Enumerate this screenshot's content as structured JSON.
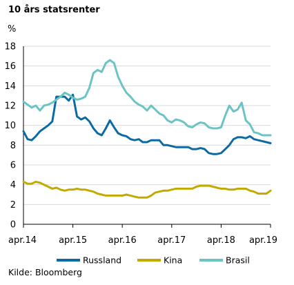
{
  "chart_data": {
    "type": "line",
    "title": "10 års statsrenter",
    "ylabel": "%",
    "ylim": [
      0,
      18
    ],
    "yticks": [
      0,
      2,
      4,
      6,
      8,
      10,
      12,
      14,
      16,
      18
    ],
    "xlim": [
      "2014-04",
      "2019-04"
    ],
    "xticks": [
      {
        "date": "2014-04",
        "label": "apr.14"
      },
      {
        "date": "2015-04",
        "label": "apr.15"
      },
      {
        "date": "2016-04",
        "label": "apr.16"
      },
      {
        "date": "2017-04",
        "label": "apr.17"
      },
      {
        "date": "2018-04",
        "label": "apr.18"
      },
      {
        "date": "2019-04",
        "label": "apr.19"
      }
    ],
    "grid": true,
    "legend_position": "bottom",
    "series": [
      {
        "name": "Russland",
        "color": "#0b6aa3",
        "points": [
          [
            "2014-04",
            9.4
          ],
          [
            "2014-05",
            8.6
          ],
          [
            "2014-06",
            8.5
          ],
          [
            "2014-07",
            8.9
          ],
          [
            "2014-08",
            9.4
          ],
          [
            "2014-09",
            9.7
          ],
          [
            "2014-10",
            10.0
          ],
          [
            "2014-11",
            10.4
          ],
          [
            "2014-12",
            12.9
          ],
          [
            "2015-01",
            12.9
          ],
          [
            "2015-02",
            12.9
          ],
          [
            "2015-03",
            12.5
          ],
          [
            "2015-04",
            13.1
          ],
          [
            "2015-05",
            10.9
          ],
          [
            "2015-06",
            10.6
          ],
          [
            "2015-07",
            10.8
          ],
          [
            "2015-08",
            10.4
          ],
          [
            "2015-09",
            9.7
          ],
          [
            "2015-10",
            9.2
          ],
          [
            "2015-11",
            9.0
          ],
          [
            "2015-12",
            9.7
          ],
          [
            "2016-01",
            10.5
          ],
          [
            "2016-02",
            9.8
          ],
          [
            "2016-03",
            9.2
          ],
          [
            "2016-04",
            9.0
          ],
          [
            "2016-05",
            8.9
          ],
          [
            "2016-06",
            8.6
          ],
          [
            "2016-07",
            8.5
          ],
          [
            "2016-08",
            8.6
          ],
          [
            "2016-09",
            8.3
          ],
          [
            "2016-10",
            8.3
          ],
          [
            "2016-11",
            8.5
          ],
          [
            "2016-12",
            8.5
          ],
          [
            "2017-01",
            8.5
          ],
          [
            "2017-02",
            8.0
          ],
          [
            "2017-03",
            8.0
          ],
          [
            "2017-04",
            7.9
          ],
          [
            "2017-05",
            7.8
          ],
          [
            "2017-06",
            7.8
          ],
          [
            "2017-07",
            7.8
          ],
          [
            "2017-08",
            7.8
          ],
          [
            "2017-09",
            7.6
          ],
          [
            "2017-10",
            7.6
          ],
          [
            "2017-11",
            7.7
          ],
          [
            "2017-12",
            7.6
          ],
          [
            "2018-01",
            7.2
          ],
          [
            "2018-02",
            7.1
          ],
          [
            "2018-03",
            7.1
          ],
          [
            "2018-04",
            7.2
          ],
          [
            "2018-05",
            7.6
          ],
          [
            "2018-06",
            8.0
          ],
          [
            "2018-07",
            8.6
          ],
          [
            "2018-08",
            8.8
          ],
          [
            "2018-09",
            8.8
          ],
          [
            "2018-10",
            8.7
          ],
          [
            "2018-11",
            8.9
          ],
          [
            "2018-12",
            8.6
          ],
          [
            "2019-01",
            8.5
          ],
          [
            "2019-02",
            8.4
          ],
          [
            "2019-03",
            8.3
          ],
          [
            "2019-04",
            8.2
          ]
        ]
      },
      {
        "name": "Kina",
        "color": "#c2aa00",
        "points": [
          [
            "2014-04",
            4.3
          ],
          [
            "2014-05",
            4.1
          ],
          [
            "2014-06",
            4.1
          ],
          [
            "2014-07",
            4.3
          ],
          [
            "2014-08",
            4.2
          ],
          [
            "2014-09",
            4.0
          ],
          [
            "2014-10",
            3.8
          ],
          [
            "2014-11",
            3.6
          ],
          [
            "2014-12",
            3.7
          ],
          [
            "2015-01",
            3.5
          ],
          [
            "2015-02",
            3.4
          ],
          [
            "2015-03",
            3.5
          ],
          [
            "2015-04",
            3.5
          ],
          [
            "2015-05",
            3.6
          ],
          [
            "2015-06",
            3.5
          ],
          [
            "2015-07",
            3.5
          ],
          [
            "2015-08",
            3.4
          ],
          [
            "2015-09",
            3.3
          ],
          [
            "2015-10",
            3.1
          ],
          [
            "2015-11",
            3.0
          ],
          [
            "2015-12",
            2.9
          ],
          [
            "2016-01",
            2.9
          ],
          [
            "2016-02",
            2.9
          ],
          [
            "2016-03",
            2.9
          ],
          [
            "2016-04",
            2.9
          ],
          [
            "2016-05",
            3.0
          ],
          [
            "2016-06",
            2.9
          ],
          [
            "2016-07",
            2.8
          ],
          [
            "2016-08",
            2.7
          ],
          [
            "2016-09",
            2.7
          ],
          [
            "2016-10",
            2.7
          ],
          [
            "2016-11",
            2.9
          ],
          [
            "2016-12",
            3.2
          ],
          [
            "2017-01",
            3.3
          ],
          [
            "2017-02",
            3.4
          ],
          [
            "2017-03",
            3.4
          ],
          [
            "2017-04",
            3.5
          ],
          [
            "2017-05",
            3.6
          ],
          [
            "2017-06",
            3.6
          ],
          [
            "2017-07",
            3.6
          ],
          [
            "2017-08",
            3.6
          ],
          [
            "2017-09",
            3.6
          ],
          [
            "2017-10",
            3.8
          ],
          [
            "2017-11",
            3.9
          ],
          [
            "2017-12",
            3.9
          ],
          [
            "2018-01",
            3.9
          ],
          [
            "2018-02",
            3.8
          ],
          [
            "2018-03",
            3.7
          ],
          [
            "2018-04",
            3.6
          ],
          [
            "2018-05",
            3.6
          ],
          [
            "2018-06",
            3.5
          ],
          [
            "2018-07",
            3.5
          ],
          [
            "2018-08",
            3.6
          ],
          [
            "2018-09",
            3.6
          ],
          [
            "2018-10",
            3.6
          ],
          [
            "2018-11",
            3.4
          ],
          [
            "2018-12",
            3.3
          ],
          [
            "2019-01",
            3.1
          ],
          [
            "2019-02",
            3.1
          ],
          [
            "2019-03",
            3.1
          ],
          [
            "2019-04",
            3.4
          ]
        ]
      },
      {
        "name": "Brasil",
        "color": "#6cc3c4",
        "points": [
          [
            "2014-04",
            12.4
          ],
          [
            "2014-05",
            12.1
          ],
          [
            "2014-06",
            11.8
          ],
          [
            "2014-07",
            12.0
          ],
          [
            "2014-08",
            11.5
          ],
          [
            "2014-09",
            12.0
          ],
          [
            "2014-10",
            12.1
          ],
          [
            "2014-11",
            12.3
          ],
          [
            "2014-12",
            12.6
          ],
          [
            "2015-01",
            12.9
          ],
          [
            "2015-02",
            13.3
          ],
          [
            "2015-03",
            13.1
          ],
          [
            "2015-04",
            12.8
          ],
          [
            "2015-05",
            12.6
          ],
          [
            "2015-06",
            12.7
          ],
          [
            "2015-07",
            12.9
          ],
          [
            "2015-08",
            13.8
          ],
          [
            "2015-09",
            15.3
          ],
          [
            "2015-10",
            15.6
          ],
          [
            "2015-11",
            15.4
          ],
          [
            "2015-12",
            16.3
          ],
          [
            "2016-01",
            16.6
          ],
          [
            "2016-02",
            16.3
          ],
          [
            "2016-03",
            14.9
          ],
          [
            "2016-04",
            14.0
          ],
          [
            "2016-05",
            13.3
          ],
          [
            "2016-06",
            12.9
          ],
          [
            "2016-07",
            12.4
          ],
          [
            "2016-08",
            12.1
          ],
          [
            "2016-09",
            11.9
          ],
          [
            "2016-10",
            11.5
          ],
          [
            "2016-11",
            12.0
          ],
          [
            "2016-12",
            11.6
          ],
          [
            "2017-01",
            11.2
          ],
          [
            "2017-02",
            11.0
          ],
          [
            "2017-03",
            10.5
          ],
          [
            "2017-04",
            10.3
          ],
          [
            "2017-05",
            10.6
          ],
          [
            "2017-06",
            10.5
          ],
          [
            "2017-07",
            10.3
          ],
          [
            "2017-08",
            9.9
          ],
          [
            "2017-09",
            9.8
          ],
          [
            "2017-10",
            10.1
          ],
          [
            "2017-11",
            10.3
          ],
          [
            "2017-12",
            10.2
          ],
          [
            "2018-01",
            9.8
          ],
          [
            "2018-02",
            9.7
          ],
          [
            "2018-03",
            9.7
          ],
          [
            "2018-04",
            9.8
          ],
          [
            "2018-05",
            11.0
          ],
          [
            "2018-06",
            12.0
          ],
          [
            "2018-07",
            11.4
          ],
          [
            "2018-08",
            11.6
          ],
          [
            "2018-09",
            12.3
          ],
          [
            "2018-10",
            10.5
          ],
          [
            "2018-11",
            10.1
          ],
          [
            "2018-12",
            9.3
          ],
          [
            "2019-01",
            9.2
          ],
          [
            "2019-02",
            9.0
          ],
          [
            "2019-03",
            9.0
          ],
          [
            "2019-04",
            9.0
          ]
        ]
      }
    ]
  },
  "source": "Kilde: Bloomberg"
}
